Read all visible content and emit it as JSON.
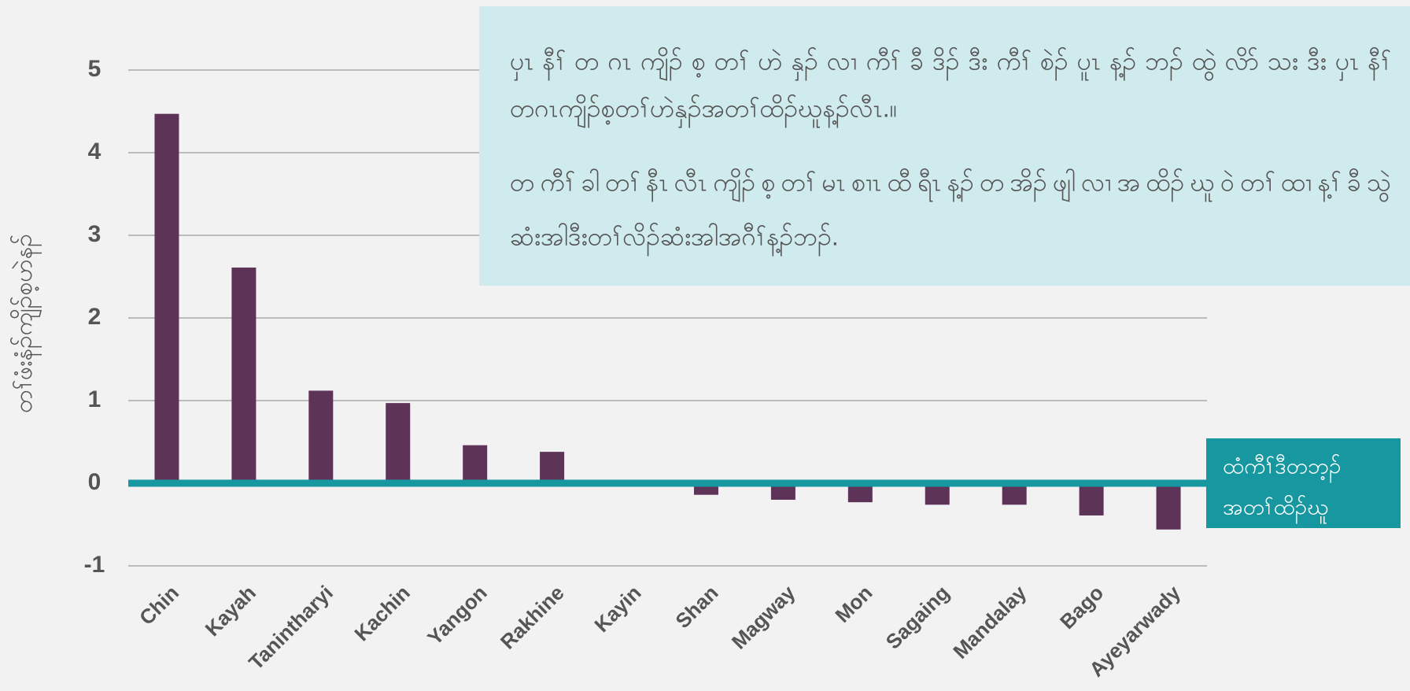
{
  "chart_data": {
    "type": "bar",
    "y_axis_label": "တၢ်ဖံးနံၣ်ကျိၣ်စ့ဟဲနၣ်",
    "annotation": [
      "ပှၤနီၢ်တဂၤကျိၣ်စ့တၢ်ဟဲနှၣ်လၢကီၢ်ခီဒိၣ်ဒီးကီၢ်စဲၣ်ပူၤန့ၣ်ဘၣ်ထွဲလိာ်သးဒီးပှၤနီၢ်",
      "တဂၤကျိၣ်စ့တၢ်ဟဲနှၣ်အတၢ်ထိၣ်ဃူန့ၣ်လီၤ.။",
      "တကီၢ်ခါတၢ်နီၤလီၤကျိၣ်စ့တၢ်မၤစၢၤထီရီၤန့ၣ်တအိၣ်ဖျါလၢအထိၣ်ဃူဝဲတၢ်ထၢန့ၢ်ခီသွဲ",
      "ဆံးအါဒီးတၢ်လိၣ်ဆံးအါအဂီၢ်န့ၣ်ဘၣ်."
    ],
    "reference_line": {
      "value": 0,
      "label": [
        "ထံကီၢ်ဒီတဘ့ၣ်",
        "အတၢ်ထိၣ်ဃူ"
      ],
      "color": "#17979f"
    },
    "categories": [
      "Chin",
      "Kayah",
      "Tanintharyi",
      "Kachin",
      "Yangon",
      "Rakhine",
      "Kayin",
      "Shan",
      "Magway",
      "Mon",
      "Sagaing",
      "Mandalay",
      "Bago",
      "Ayeyarwady"
    ],
    "values": [
      4.47,
      2.61,
      1.12,
      0.97,
      0.46,
      0.38,
      0,
      -0.14,
      -0.2,
      -0.23,
      -0.26,
      -0.26,
      -0.39,
      -0.56
    ],
    "color": "#5e3358",
    "ylim": [
      -1,
      5
    ],
    "yticks": [
      -1,
      0,
      1,
      2,
      3,
      4,
      5
    ],
    "grid": true
  }
}
